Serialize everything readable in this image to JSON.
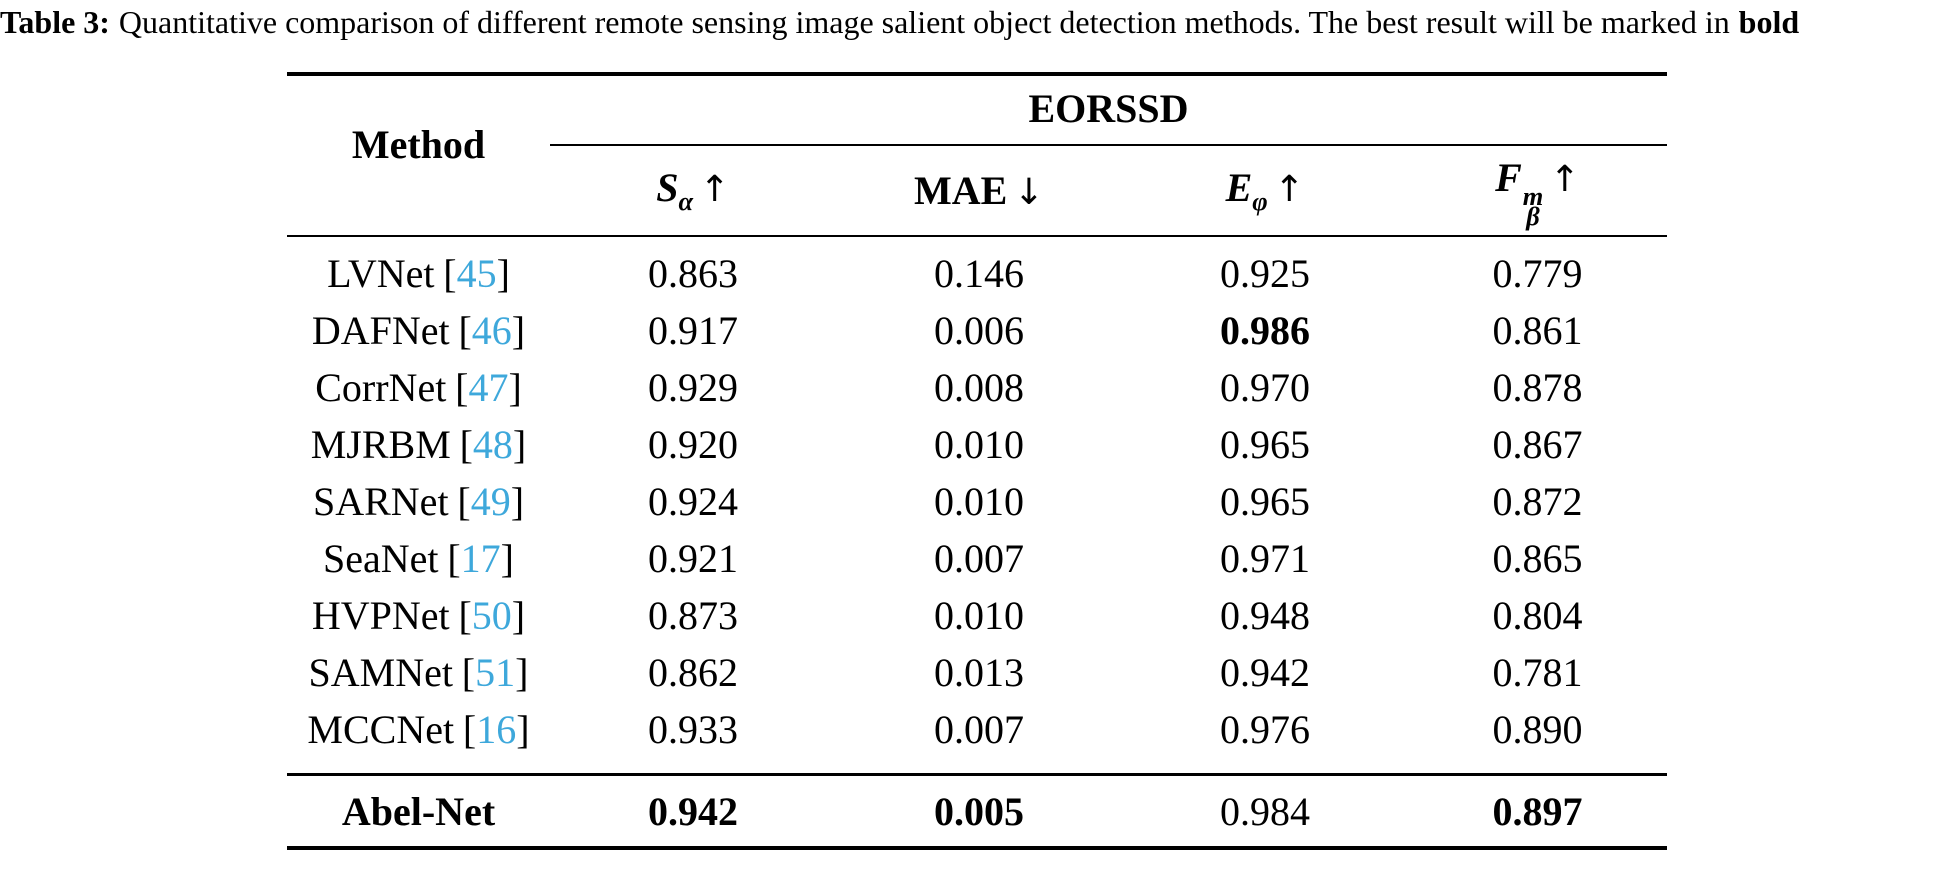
{
  "caption": {
    "label": "Table 3:",
    "body": "Quantitative comparison of different remote sensing image salient object detection methods. The best result will be marked in",
    "bold_suffix": "bold"
  },
  "table": {
    "corner_header": "Method",
    "group_header": "EORSSD",
    "bracket_open": "[",
    "bracket_close": "]",
    "metrics": [
      {
        "base": "S",
        "sub": "α",
        "sup": "",
        "arrow": "↑"
      },
      {
        "base": "MAE",
        "sub": "",
        "sup": "",
        "arrow": "↓"
      },
      {
        "base": "E",
        "sub": "φ",
        "sup": "",
        "arrow": "↑"
      },
      {
        "base": "F",
        "sub": "β",
        "sup": "m",
        "arrow": "↑"
      }
    ],
    "rows": [
      {
        "method": "LVNet",
        "cite": "45",
        "values": [
          "0.863",
          "0.146",
          "0.925",
          "0.779"
        ],
        "bold": [
          false,
          false,
          false,
          false
        ]
      },
      {
        "method": "DAFNet",
        "cite": "46",
        "values": [
          "0.917",
          "0.006",
          "0.986",
          "0.861"
        ],
        "bold": [
          false,
          false,
          true,
          false
        ]
      },
      {
        "method": "CorrNet",
        "cite": "47",
        "values": [
          "0.929",
          "0.008",
          "0.970",
          "0.878"
        ],
        "bold": [
          false,
          false,
          false,
          false
        ]
      },
      {
        "method": "MJRBM",
        "cite": "48",
        "values": [
          "0.920",
          "0.010",
          "0.965",
          "0.867"
        ],
        "bold": [
          false,
          false,
          false,
          false
        ]
      },
      {
        "method": "SARNet",
        "cite": "49",
        "values": [
          "0.924",
          "0.010",
          "0.965",
          "0.872"
        ],
        "bold": [
          false,
          false,
          false,
          false
        ]
      },
      {
        "method": "SeaNet",
        "cite": "17",
        "values": [
          "0.921",
          "0.007",
          "0.971",
          "0.865"
        ],
        "bold": [
          false,
          false,
          false,
          false
        ]
      },
      {
        "method": "HVPNet",
        "cite": "50",
        "values": [
          "0.873",
          "0.010",
          "0.948",
          "0.804"
        ],
        "bold": [
          false,
          false,
          false,
          false
        ]
      },
      {
        "method": "SAMNet",
        "cite": "51",
        "values": [
          "0.862",
          "0.013",
          "0.942",
          "0.781"
        ],
        "bold": [
          false,
          false,
          false,
          false
        ]
      },
      {
        "method": "MCCNet",
        "cite": "16",
        "values": [
          "0.933",
          "0.007",
          "0.976",
          "0.890"
        ],
        "bold": [
          false,
          false,
          false,
          false
        ]
      }
    ],
    "footer_row": {
      "method": "Abel-Net",
      "values": [
        "0.942",
        "0.005",
        "0.984",
        "0.897"
      ],
      "bold": [
        true,
        true,
        false,
        true
      ]
    }
  },
  "colors": {
    "text": "#000000",
    "citation_link": "#3ea8db",
    "rule": "#000000"
  }
}
